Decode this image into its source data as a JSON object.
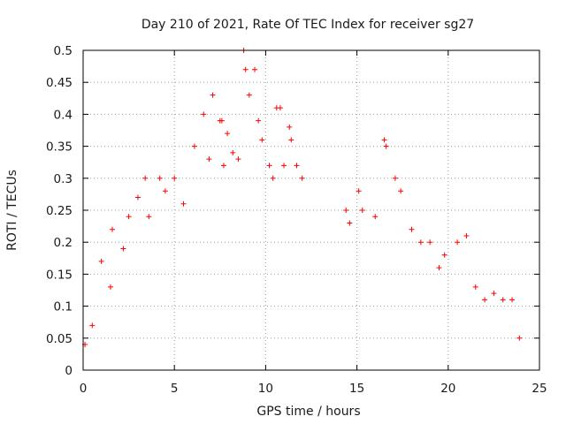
{
  "chart_data": {
    "type": "scatter",
    "title": "Day 210 of 2021, Rate Of TEC Index for receiver sg27",
    "xlabel": "GPS time / hours",
    "ylabel": "ROTI / TECUs",
    "xlim": [
      0,
      25
    ],
    "ylim": [
      0,
      0.5
    ],
    "x_ticks": [
      0,
      5,
      10,
      15,
      20,
      25
    ],
    "y_ticks": [
      0,
      0.05,
      0.1,
      0.15,
      0.2,
      0.25,
      0.3,
      0.35,
      0.4,
      0.45,
      0.5
    ],
    "x_tick_labels": [
      "0",
      "5",
      "10",
      "15",
      "20",
      "25"
    ],
    "y_tick_labels": [
      "0",
      "0.05",
      "0.1",
      "0.15",
      "0.2",
      "0.25",
      "0.3",
      "0.35",
      "0.4",
      "0.45",
      "0.5"
    ],
    "grid": true,
    "marker": "plus",
    "color": "#ff0000",
    "data_gap_hours": [
      12.2,
      14.3
    ],
    "series": [
      {
        "x": [
          0.1,
          0.5,
          1.0,
          1.5,
          1.6,
          2.2,
          2.5,
          3.0,
          3.4,
          3.6,
          4.2,
          4.5,
          5.0,
          5.5,
          6.1,
          6.6,
          6.9,
          7.1,
          7.5,
          7.6,
          7.7,
          7.9,
          8.2,
          8.5,
          8.8,
          8.9,
          9.1,
          9.4,
          9.6,
          9.8,
          10.2,
          10.4,
          10.6,
          10.8,
          11.0,
          11.3,
          11.4,
          11.7,
          12.0,
          14.4,
          14.6,
          15.1,
          15.3,
          16.0,
          16.5,
          16.6,
          17.1,
          17.4,
          18.0,
          18.5,
          19.0,
          19.5,
          19.8,
          20.5,
          21.0,
          21.5,
          22.0,
          22.5,
          23.0,
          23.5,
          23.9
        ],
        "y": [
          0.04,
          0.07,
          0.17,
          0.13,
          0.22,
          0.19,
          0.24,
          0.27,
          0.3,
          0.24,
          0.3,
          0.28,
          0.3,
          0.26,
          0.35,
          0.4,
          0.33,
          0.43,
          0.39,
          0.39,
          0.32,
          0.37,
          0.34,
          0.33,
          0.5,
          0.47,
          0.43,
          0.47,
          0.39,
          0.36,
          0.32,
          0.3,
          0.41,
          0.41,
          0.32,
          0.38,
          0.36,
          0.32,
          0.3,
          0.25,
          0.23,
          0.28,
          0.25,
          0.24,
          0.36,
          0.35,
          0.3,
          0.28,
          0.22,
          0.2,
          0.2,
          0.16,
          0.18,
          0.2,
          0.21,
          0.13,
          0.11,
          0.12,
          0.11,
          0.11,
          0.05
        ]
      }
    ]
  }
}
